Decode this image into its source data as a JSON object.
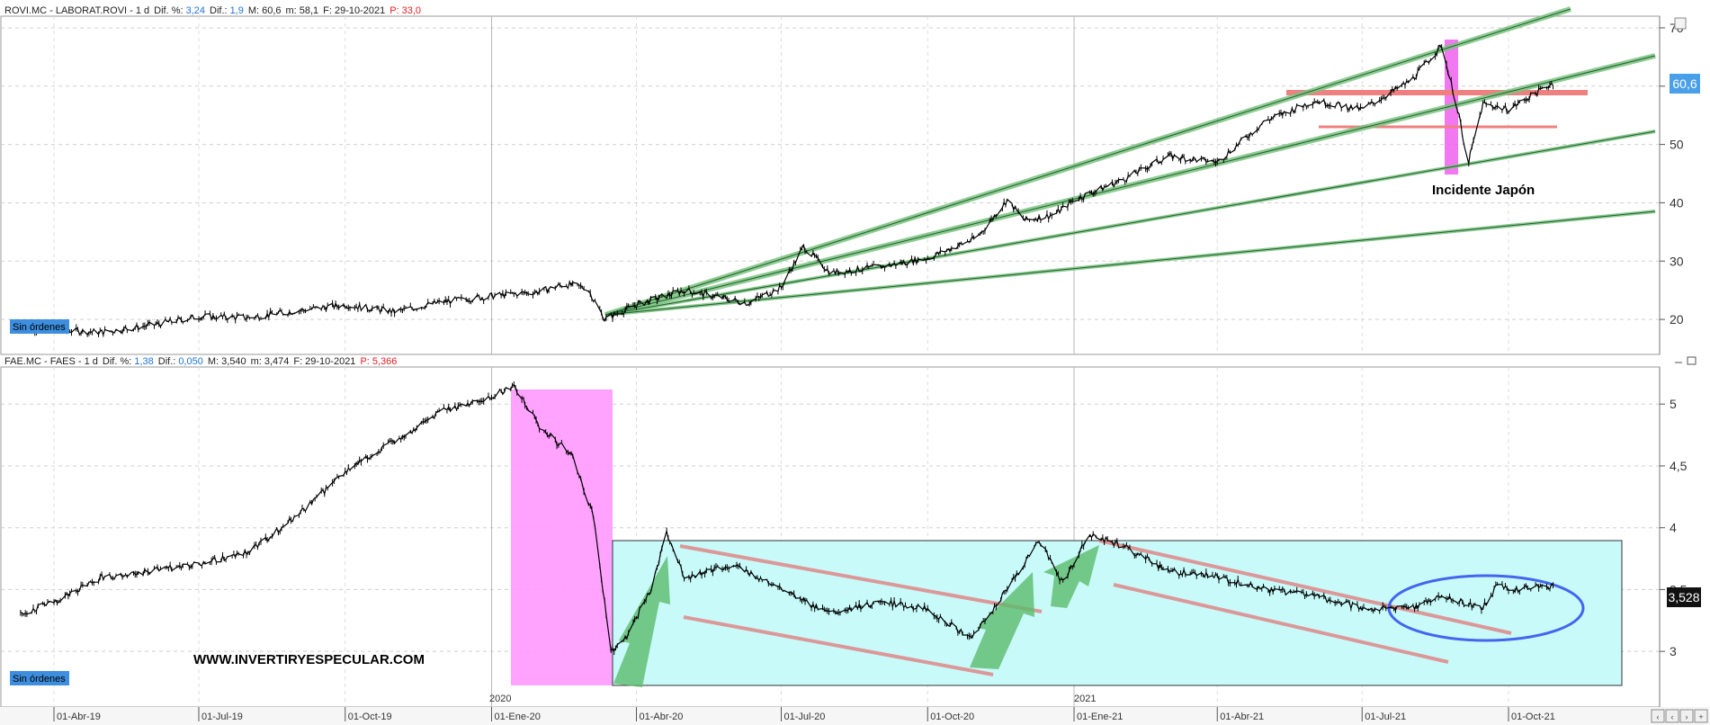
{
  "top_panel": {
    "info": {
      "ticker": "ROVI.MC - LABORAT.ROVI - ",
      "timeframe": " 1 d",
      "change_pct_label": "Dif. %:",
      "change_pct": "3,24",
      "change_label": "Dif.:",
      "change": "1,9",
      "max_label": "M:",
      "max": "60,6",
      "min_label": "m:",
      "min": "58,1",
      "date_label": "F:",
      "date": "29-10-2021",
      "per_label": "P:",
      "per": "33,0"
    },
    "price_badge": "60,6",
    "orders_badge": "Sin órdenes",
    "annotation": "Incidente Japón",
    "colors": {
      "price_badge": "#4aa0e8",
      "highlight": "#f060f0",
      "support": "#f08080",
      "trend": "#3a9a4a"
    }
  },
  "bottom_panel": {
    "info": {
      "ticker": "FAE.MC - FAES - ",
      "timeframe": " 1 d",
      "change_pct_label": "Dif. %:",
      "change_pct": "1,38",
      "change_label": "Dif.:",
      "change": "0,050",
      "max_label": "M:",
      "max": "3,540",
      "min_label": "m:",
      "min": "3,474",
      "date_label": "F:",
      "date": "29-10-2021",
      "per_label": "P:",
      "per": "5,366"
    },
    "price_badge": "3,528",
    "orders_badge": "Sin órdenes",
    "watermark": "WWW.INVERTIRYESPECULAR.COM",
    "colors": {
      "price_badge": "#111111",
      "highlight": "#ff99ff",
      "range_box": "#c8fafa",
      "channel": "#e08888",
      "arrow": "#5cbc6c",
      "ellipse": "#4466ee"
    }
  },
  "x_axis": {
    "year_marks": [
      "2020",
      "2021"
    ],
    "ticks": [
      "01-Abr-19",
      "01-Jul-19",
      "01-Oct-19",
      "01-Ene-20",
      "01-Abr-20",
      "01-Jul-20",
      "01-Oct-20",
      "01-Ene-21",
      "01-Abr-21",
      "01-Jul-21",
      "01-Oct-21"
    ]
  },
  "window_buttons": [
    "‹",
    "‹",
    "›",
    "+"
  ],
  "chart_data": [
    {
      "type": "line",
      "title": "ROVI.MC - LABORAT.ROVI",
      "ylim": [
        14,
        72
      ],
      "yticks": [
        20,
        30,
        40,
        50,
        60,
        70
      ],
      "x": [
        "2019-03-10",
        "2019-04-01",
        "2019-05-01",
        "2019-06-01",
        "2019-07-01",
        "2019-08-01",
        "2019-09-01",
        "2019-10-01",
        "2019-11-01",
        "2019-12-01",
        "2020-01-01",
        "2020-02-01",
        "2020-02-15",
        "2020-03-01",
        "2020-03-12",
        "2020-04-01",
        "2020-05-01",
        "2020-05-20",
        "2020-06-10",
        "2020-07-01",
        "2020-07-15",
        "2020-08-01",
        "2020-09-01",
        "2020-10-01",
        "2020-11-01",
        "2020-11-20",
        "2020-12-01",
        "2020-12-20",
        "2021-01-01",
        "2021-02-01",
        "2021-03-01",
        "2021-04-01",
        "2021-05-01",
        "2021-06-01",
        "2021-07-01",
        "2021-08-01",
        "2021-08-20",
        "2021-08-31",
        "2021-09-05",
        "2021-09-15",
        "2021-10-01",
        "2021-10-29"
      ],
      "series": [
        {
          "values": [
            18.5,
            18.2,
            17.8,
            19.0,
            20.5,
            20.3,
            21.5,
            22.5,
            21.3,
            23.0,
            24.0,
            24.8,
            26.0,
            25.5,
            20.0,
            22.5,
            25.0,
            24.0,
            22.8,
            25.5,
            32.5,
            28.0,
            29.0,
            30.5,
            34.0,
            40.5,
            37.0,
            38.0,
            40.5,
            44.0,
            48.0,
            47.0,
            54.0,
            57.5,
            56.0,
            61.0,
            67.0,
            55.0,
            46.0,
            57.0,
            56.0,
            60.6
          ]
        }
      ],
      "annotations": [
        {
          "text": "Incidente Japón",
          "date": "2021-09-01"
        }
      ],
      "grid": true
    },
    {
      "type": "line",
      "title": "FAE.MC - FAES",
      "ylim": [
        2.55,
        5.3
      ],
      "yticks": [
        3,
        3.5,
        4,
        4.5,
        5
      ],
      "x": [
        "2019-03-10",
        "2019-04-01",
        "2019-05-01",
        "2019-06-01",
        "2019-07-01",
        "2019-08-01",
        "2019-09-01",
        "2019-10-01",
        "2019-11-01",
        "2019-12-01",
        "2019-12-31",
        "2020-01-15",
        "2020-02-01",
        "2020-02-20",
        "2020-03-05",
        "2020-03-16",
        "2020-03-25",
        "2020-04-10",
        "2020-04-20",
        "2020-05-01",
        "2020-06-01",
        "2020-07-01",
        "2020-08-01",
        "2020-09-01",
        "2020-10-01",
        "2020-10-28",
        "2020-11-20",
        "2020-12-10",
        "2020-12-25",
        "2021-01-10",
        "2021-02-01",
        "2021-03-01",
        "2021-04-01",
        "2021-05-01",
        "2021-06-01",
        "2021-07-01",
        "2021-08-01",
        "2021-08-20",
        "2021-09-01",
        "2021-09-15",
        "2021-09-25",
        "2021-10-01",
        "2021-10-29"
      ],
      "series": [
        {
          "values": [
            3.3,
            3.4,
            3.6,
            3.65,
            3.7,
            3.8,
            4.1,
            4.45,
            4.7,
            4.95,
            5.05,
            5.15,
            4.8,
            4.6,
            4.1,
            3.0,
            3.1,
            3.5,
            3.95,
            3.6,
            3.7,
            3.5,
            3.3,
            3.4,
            3.35,
            3.1,
            3.5,
            3.9,
            3.55,
            3.95,
            3.85,
            3.65,
            3.6,
            3.5,
            3.45,
            3.35,
            3.35,
            3.45,
            3.4,
            3.35,
            3.55,
            3.5,
            3.528
          ]
        }
      ],
      "grid": true
    }
  ]
}
